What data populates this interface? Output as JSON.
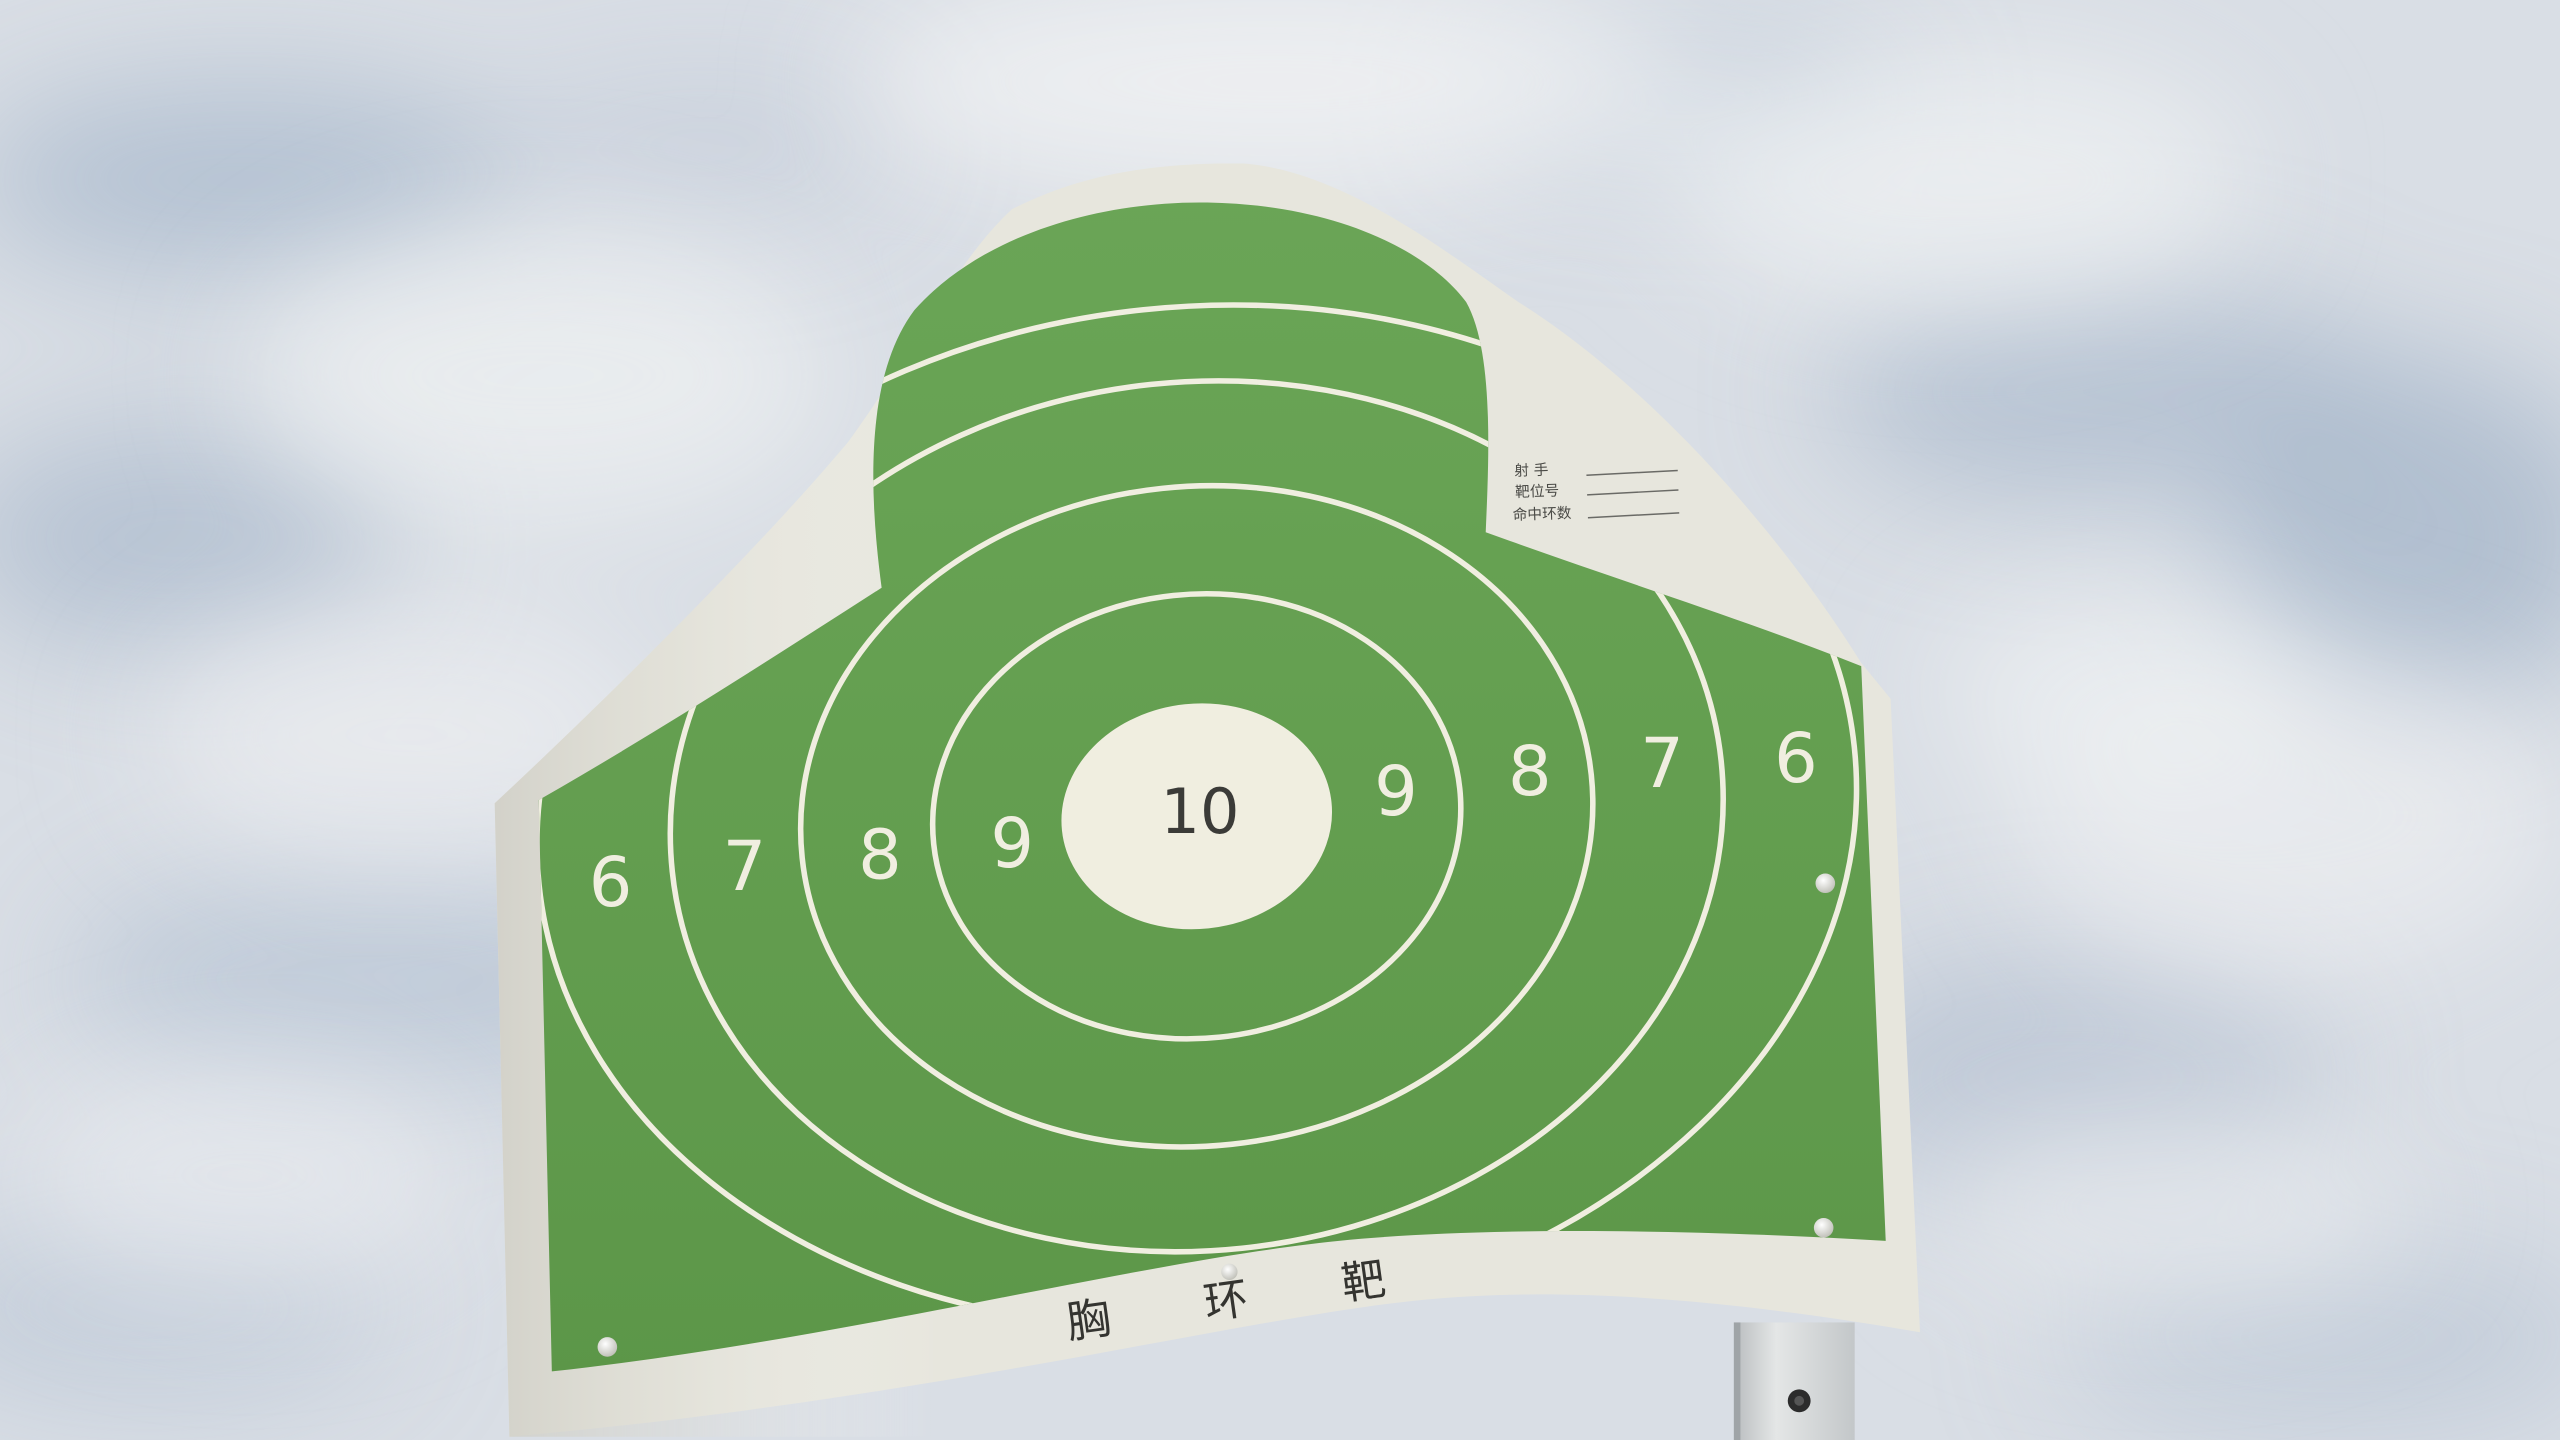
{
  "target": {
    "title": "胸环靶",
    "center_score": "10",
    "left_scores": [
      "6",
      "7",
      "8",
      "9"
    ],
    "right_scores": [
      "9",
      "8",
      "7",
      "6"
    ],
    "form_labels": [
      "射 手",
      "靶位号",
      "命中环数"
    ]
  },
  "colors": {
    "sky": "#d9dee5",
    "sky_streak": "#a9b9cc",
    "paper": "#e7e6dd",
    "target_green": "#62a04d",
    "ring_line": "#f0eee0",
    "post": "#d2d5d6"
  }
}
